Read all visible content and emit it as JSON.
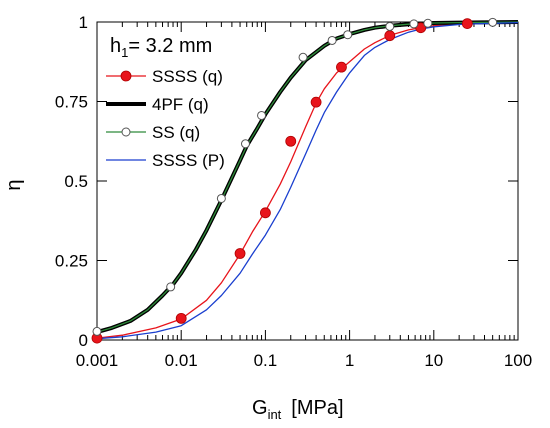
{
  "chart_data": {
    "type": "line",
    "x_scale": "log",
    "xlim": [
      0.001,
      100
    ],
    "ylim": [
      0,
      1
    ],
    "x_ticks": [
      {
        "value": 0.001,
        "label": "0.001"
      },
      {
        "value": 0.01,
        "label": "0.01"
      },
      {
        "value": 0.1,
        "label": "0.1"
      },
      {
        "value": 1,
        "label": "1"
      },
      {
        "value": 10,
        "label": "10"
      },
      {
        "value": 100,
        "label": "100"
      }
    ],
    "y_ticks": [
      {
        "value": 0,
        "label": "0"
      },
      {
        "value": 0.25,
        "label": "0.25"
      },
      {
        "value": 0.5,
        "label": "0.5"
      },
      {
        "value": 0.75,
        "label": "0.75"
      },
      {
        "value": 1,
        "label": "1"
      }
    ],
    "xlabel_main": "G",
    "xlabel_sub": "int",
    "xlabel_unit": "[MPa]",
    "ylabel": "η",
    "annotation": {
      "main": "h",
      "sub": "1",
      "rest": "= 3.2 mm"
    },
    "legend_position": "top-left",
    "grid": false,
    "series": [
      {
        "name": "SSSS (q)",
        "color": "#e8141b",
        "line_width": 1.3,
        "marker": "filled-circle",
        "x": [
          0.001,
          0.002,
          0.005,
          0.01,
          0.02,
          0.03,
          0.05,
          0.07,
          0.1,
          0.15,
          0.2,
          0.3,
          0.4,
          0.5,
          0.7,
          1,
          1.5,
          2,
          3,
          5,
          7,
          10,
          20,
          30,
          50,
          100
        ],
        "y": [
          0.006,
          0.015,
          0.038,
          0.066,
          0.125,
          0.18,
          0.27,
          0.34,
          0.405,
          0.49,
          0.56,
          0.67,
          0.745,
          0.79,
          0.84,
          0.875,
          0.915,
          0.935,
          0.958,
          0.975,
          0.982,
          0.988,
          0.993,
          0.995,
          0.997,
          0.998
        ],
        "marker_x": [
          0.001,
          0.01,
          0.05,
          0.1,
          0.2,
          0.4,
          0.8,
          3,
          7,
          25
        ],
        "marker_y": [
          0.006,
          0.068,
          0.272,
          0.4,
          0.625,
          0.748,
          0.858,
          0.957,
          0.982,
          0.995
        ]
      },
      {
        "name": "4PF (q)",
        "color": "#000000",
        "line_width": 4,
        "marker": "none",
        "x": [
          0.001,
          0.0015,
          0.0025,
          0.004,
          0.006,
          0.008,
          0.01,
          0.015,
          0.02,
          0.03,
          0.04,
          0.05,
          0.06,
          0.08,
          0.1,
          0.15,
          0.2,
          0.3,
          0.5,
          0.7,
          1,
          1.5,
          2,
          3,
          5,
          7,
          10,
          20,
          50,
          100
        ],
        "y": [
          0.025,
          0.038,
          0.06,
          0.095,
          0.14,
          0.175,
          0.21,
          0.285,
          0.345,
          0.44,
          0.51,
          0.565,
          0.61,
          0.665,
          0.71,
          0.78,
          0.825,
          0.88,
          0.925,
          0.948,
          0.962,
          0.975,
          0.982,
          0.988,
          0.993,
          0.995,
          0.997,
          0.998,
          0.999,
          1.0
        ]
      },
      {
        "name": "SS (q)",
        "color": "#2e8b3a",
        "line_width": 1.3,
        "marker": "open-circle",
        "x": [
          0.001,
          0.0015,
          0.0025,
          0.004,
          0.006,
          0.008,
          0.01,
          0.015,
          0.02,
          0.03,
          0.04,
          0.05,
          0.06,
          0.08,
          0.1,
          0.15,
          0.2,
          0.3,
          0.5,
          0.7,
          1,
          1.5,
          2,
          3,
          5,
          7,
          10,
          20,
          50,
          100
        ],
        "y": [
          0.025,
          0.038,
          0.06,
          0.095,
          0.14,
          0.175,
          0.21,
          0.285,
          0.345,
          0.44,
          0.51,
          0.565,
          0.61,
          0.665,
          0.71,
          0.78,
          0.825,
          0.88,
          0.925,
          0.948,
          0.962,
          0.975,
          0.982,
          0.988,
          0.993,
          0.995,
          0.997,
          0.998,
          0.999,
          1.0
        ],
        "marker_x": [
          0.001,
          0.0075,
          0.03,
          0.058,
          0.09,
          0.28,
          0.62,
          0.95,
          3,
          5.8,
          8.5,
          50
        ],
        "marker_y": [
          0.027,
          0.167,
          0.445,
          0.617,
          0.706,
          0.889,
          0.942,
          0.96,
          0.986,
          0.994,
          0.996,
          0.999
        ]
      },
      {
        "name": "SSSS (P)",
        "color": "#1a3fcf",
        "line_width": 1.3,
        "marker": "none",
        "x": [
          0.001,
          0.002,
          0.005,
          0.01,
          0.02,
          0.03,
          0.05,
          0.07,
          0.1,
          0.15,
          0.2,
          0.3,
          0.4,
          0.5,
          0.7,
          1,
          1.5,
          2,
          3,
          5,
          7,
          10,
          20,
          30,
          50,
          100
        ],
        "y": [
          0.004,
          0.01,
          0.025,
          0.045,
          0.095,
          0.14,
          0.21,
          0.27,
          0.33,
          0.41,
          0.48,
          0.585,
          0.66,
          0.715,
          0.78,
          0.84,
          0.895,
          0.92,
          0.945,
          0.968,
          0.978,
          0.985,
          0.992,
          0.994,
          0.996,
          0.998
        ]
      }
    ]
  }
}
